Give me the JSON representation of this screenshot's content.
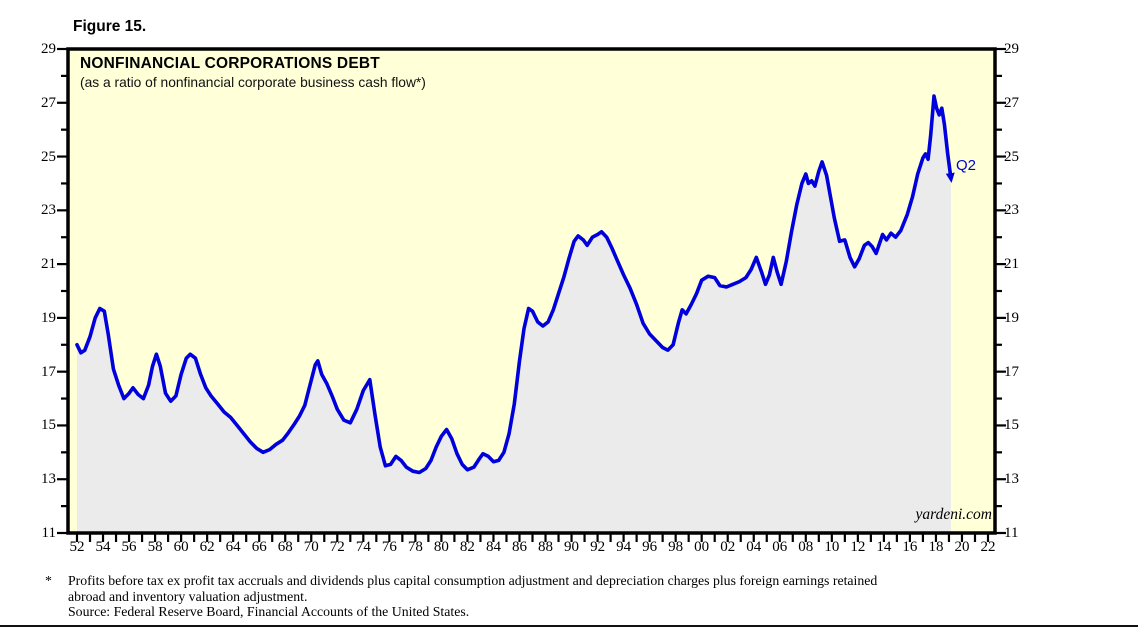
{
  "figure_label": "Figure 15.",
  "chart": {
    "title": "NONFINANCIAL CORPORATIONS DEBT",
    "subtitle": "(as a ratio of nonfinancial corporate business cash flow*)",
    "watermark": "yardeni.com",
    "end_label": "Q2",
    "colors": {
      "line": "#0000DC",
      "plot_background": "#FFFFD8",
      "area_fill": "#EBEBEB",
      "axis": "#000000"
    }
  },
  "chart_data": {
    "type": "line",
    "title": "NONFINANCIAL CORPORATIONS DEBT",
    "subtitle": "(as a ratio of nonfinancial corporate business cash flow*)",
    "xlabel": "",
    "ylabel": "",
    "grid": false,
    "ylim": [
      11,
      29
    ],
    "y_axis": {
      "labeled_ticks": [
        29,
        27,
        25,
        23,
        21,
        19,
        17,
        15,
        13,
        11
      ],
      "minor_ticks": [
        28,
        26,
        24,
        22,
        20,
        18,
        16,
        14,
        12
      ],
      "labels_on_both_sides": true
    },
    "x_axis": {
      "start_year": 1952,
      "end_year": 2022,
      "tick_every_years": 1,
      "label_every_years": 2,
      "labels": [
        "52",
        "54",
        "56",
        "58",
        "60",
        "62",
        "64",
        "66",
        "68",
        "70",
        "72",
        "74",
        "76",
        "78",
        "80",
        "82",
        "84",
        "86",
        "88",
        "90",
        "92",
        "94",
        "96",
        "98",
        "00",
        "02",
        "04",
        "06",
        "08",
        "10",
        "12",
        "14",
        "16",
        "18",
        "20",
        "22"
      ]
    },
    "last_point_label": "Q2",
    "series": [
      {
        "name": "Nonfinancial corporations debt (ratio to cash flow)",
        "points": [
          [
            1952.0,
            18.0
          ],
          [
            1952.3,
            17.7
          ],
          [
            1952.6,
            17.8
          ],
          [
            1953.0,
            18.3
          ],
          [
            1953.4,
            19.0
          ],
          [
            1953.75,
            19.35
          ],
          [
            1954.1,
            19.25
          ],
          [
            1954.4,
            18.4
          ],
          [
            1954.8,
            17.1
          ],
          [
            1955.2,
            16.5
          ],
          [
            1955.6,
            16.0
          ],
          [
            1956.0,
            16.2
          ],
          [
            1956.3,
            16.4
          ],
          [
            1956.7,
            16.15
          ],
          [
            1957.1,
            16.0
          ],
          [
            1957.5,
            16.5
          ],
          [
            1957.8,
            17.2
          ],
          [
            1958.1,
            17.65
          ],
          [
            1958.4,
            17.2
          ],
          [
            1958.8,
            16.2
          ],
          [
            1959.2,
            15.9
          ],
          [
            1959.6,
            16.1
          ],
          [
            1960.0,
            16.9
          ],
          [
            1960.4,
            17.5
          ],
          [
            1960.7,
            17.65
          ],
          [
            1961.1,
            17.5
          ],
          [
            1961.5,
            16.9
          ],
          [
            1961.9,
            16.4
          ],
          [
            1962.3,
            16.1
          ],
          [
            1962.8,
            15.8
          ],
          [
            1963.3,
            15.5
          ],
          [
            1963.8,
            15.3
          ],
          [
            1964.3,
            15.0
          ],
          [
            1964.8,
            14.7
          ],
          [
            1965.3,
            14.4
          ],
          [
            1965.8,
            14.15
          ],
          [
            1966.3,
            14.0
          ],
          [
            1966.8,
            14.1
          ],
          [
            1967.3,
            14.3
          ],
          [
            1967.8,
            14.45
          ],
          [
            1968.2,
            14.7
          ],
          [
            1968.7,
            15.05
          ],
          [
            1969.1,
            15.35
          ],
          [
            1969.5,
            15.75
          ],
          [
            1969.9,
            16.5
          ],
          [
            1970.3,
            17.25
          ],
          [
            1970.5,
            17.4
          ],
          [
            1970.8,
            16.9
          ],
          [
            1971.2,
            16.55
          ],
          [
            1971.6,
            16.1
          ],
          [
            1972.0,
            15.6
          ],
          [
            1972.5,
            15.2
          ],
          [
            1973.0,
            15.1
          ],
          [
            1973.5,
            15.6
          ],
          [
            1974.0,
            16.3
          ],
          [
            1974.5,
            16.7
          ],
          [
            1974.9,
            15.4
          ],
          [
            1975.3,
            14.2
          ],
          [
            1975.7,
            13.5
          ],
          [
            1976.1,
            13.55
          ],
          [
            1976.5,
            13.85
          ],
          [
            1976.9,
            13.7
          ],
          [
            1977.3,
            13.45
          ],
          [
            1977.8,
            13.3
          ],
          [
            1978.3,
            13.25
          ],
          [
            1978.8,
            13.4
          ],
          [
            1979.2,
            13.7
          ],
          [
            1979.6,
            14.2
          ],
          [
            1980.0,
            14.6
          ],
          [
            1980.4,
            14.85
          ],
          [
            1980.8,
            14.5
          ],
          [
            1981.2,
            13.95
          ],
          [
            1981.6,
            13.55
          ],
          [
            1982.0,
            13.35
          ],
          [
            1982.5,
            13.45
          ],
          [
            1982.9,
            13.75
          ],
          [
            1983.2,
            13.95
          ],
          [
            1983.6,
            13.85
          ],
          [
            1984.0,
            13.65
          ],
          [
            1984.4,
            13.7
          ],
          [
            1984.8,
            14.0
          ],
          [
            1985.2,
            14.7
          ],
          [
            1985.6,
            15.8
          ],
          [
            1986.0,
            17.4
          ],
          [
            1986.35,
            18.6
          ],
          [
            1986.7,
            19.35
          ],
          [
            1987.0,
            19.25
          ],
          [
            1987.4,
            18.85
          ],
          [
            1987.8,
            18.7
          ],
          [
            1988.2,
            18.85
          ],
          [
            1988.6,
            19.3
          ],
          [
            1989.0,
            19.9
          ],
          [
            1989.4,
            20.5
          ],
          [
            1989.8,
            21.2
          ],
          [
            1990.2,
            21.85
          ],
          [
            1990.5,
            22.05
          ],
          [
            1990.9,
            21.9
          ],
          [
            1991.2,
            21.7
          ],
          [
            1991.6,
            22.0
          ],
          [
            1992.0,
            22.1
          ],
          [
            1992.3,
            22.2
          ],
          [
            1992.7,
            22.0
          ],
          [
            1993.1,
            21.6
          ],
          [
            1993.5,
            21.15
          ],
          [
            1994.0,
            20.6
          ],
          [
            1994.5,
            20.1
          ],
          [
            1995.0,
            19.5
          ],
          [
            1995.5,
            18.8
          ],
          [
            1996.0,
            18.4
          ],
          [
            1996.5,
            18.15
          ],
          [
            1997.0,
            17.9
          ],
          [
            1997.4,
            17.8
          ],
          [
            1997.8,
            18.0
          ],
          [
            1998.2,
            18.8
          ],
          [
            1998.5,
            19.3
          ],
          [
            1998.8,
            19.15
          ],
          [
            1999.2,
            19.5
          ],
          [
            1999.6,
            19.9
          ],
          [
            2000.0,
            20.4
          ],
          [
            2000.5,
            20.55
          ],
          [
            2001.0,
            20.5
          ],
          [
            2001.4,
            20.2
          ],
          [
            2001.9,
            20.15
          ],
          [
            2002.4,
            20.25
          ],
          [
            2002.9,
            20.35
          ],
          [
            2003.4,
            20.5
          ],
          [
            2003.8,
            20.8
          ],
          [
            2004.2,
            21.25
          ],
          [
            2004.6,
            20.7
          ],
          [
            2004.9,
            20.25
          ],
          [
            2005.2,
            20.6
          ],
          [
            2005.5,
            21.25
          ],
          [
            2005.8,
            20.7
          ],
          [
            2006.1,
            20.25
          ],
          [
            2006.5,
            21.1
          ],
          [
            2006.9,
            22.2
          ],
          [
            2007.3,
            23.2
          ],
          [
            2007.7,
            24.0
          ],
          [
            2008.0,
            24.35
          ],
          [
            2008.2,
            24.0
          ],
          [
            2008.45,
            24.1
          ],
          [
            2008.7,
            23.9
          ],
          [
            2009.0,
            24.45
          ],
          [
            2009.25,
            24.8
          ],
          [
            2009.6,
            24.3
          ],
          [
            2009.9,
            23.5
          ],
          [
            2010.2,
            22.7
          ],
          [
            2010.6,
            21.85
          ],
          [
            2011.0,
            21.9
          ],
          [
            2011.4,
            21.25
          ],
          [
            2011.75,
            20.9
          ],
          [
            2012.1,
            21.2
          ],
          [
            2012.5,
            21.7
          ],
          [
            2012.8,
            21.8
          ],
          [
            2013.1,
            21.65
          ],
          [
            2013.4,
            21.4
          ],
          [
            2013.9,
            22.1
          ],
          [
            2014.2,
            21.9
          ],
          [
            2014.55,
            22.15
          ],
          [
            2014.9,
            22.0
          ],
          [
            2015.3,
            22.25
          ],
          [
            2015.8,
            22.85
          ],
          [
            2016.2,
            23.5
          ],
          [
            2016.6,
            24.35
          ],
          [
            2017.0,
            24.95
          ],
          [
            2017.2,
            25.1
          ],
          [
            2017.4,
            24.9
          ],
          [
            2017.6,
            25.8
          ],
          [
            2017.85,
            27.25
          ],
          [
            2018.05,
            26.8
          ],
          [
            2018.25,
            26.55
          ],
          [
            2018.45,
            26.8
          ],
          [
            2018.65,
            26.2
          ],
          [
            2018.9,
            25.1
          ],
          [
            2019.15,
            24.2
          ]
        ]
      }
    ]
  },
  "footnote": {
    "marker": "*",
    "line1": "Profits before tax ex profit tax accruals and dividends plus capital consumption adjustment and depreciation charges plus foreign earnings retained",
    "line2": "abroad and inventory valuation adjustment.",
    "source": "Source: Federal Reserve Board, Financial Accounts of the United States."
  }
}
